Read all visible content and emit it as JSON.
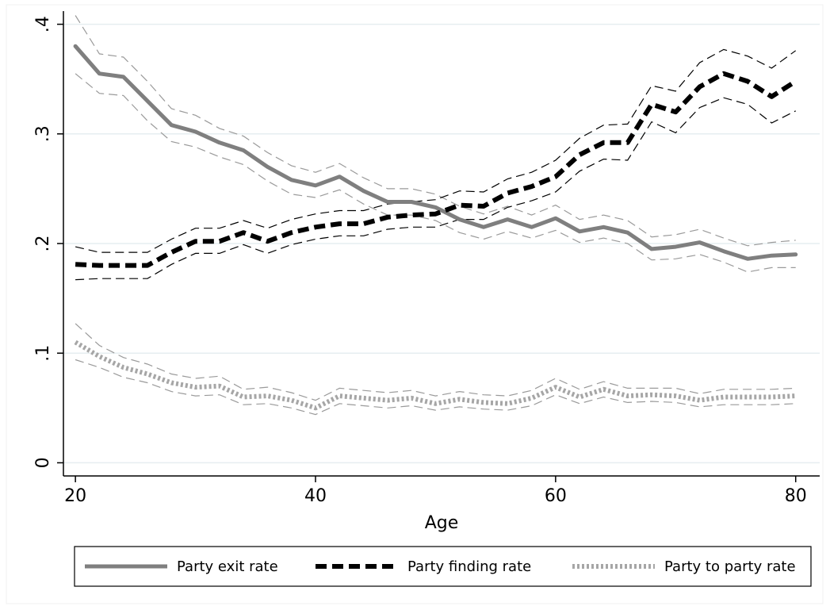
{
  "chart_data": {
    "type": "line",
    "xlabel": "Age",
    "ylabel": "",
    "xlim": [
      19,
      82
    ],
    "ylim": [
      -0.012,
      0.412
    ],
    "xticks": [
      20,
      40,
      60,
      80
    ],
    "xtick_labels": [
      "20",
      "40",
      "60",
      "80"
    ],
    "yticks": [
      0,
      0.1,
      0.2,
      0.3,
      0.4
    ],
    "ytick_labels": [
      "0",
      ".1",
      ".2",
      ".3",
      ".4"
    ],
    "grid": true,
    "legend_position": "bottom",
    "x": [
      20,
      22,
      24,
      26,
      28,
      30,
      32,
      34,
      36,
      38,
      40,
      42,
      44,
      46,
      48,
      50,
      52,
      54,
      56,
      58,
      60,
      62,
      64,
      66,
      68,
      70,
      72,
      74,
      76,
      78,
      80
    ],
    "series": [
      {
        "name": "Party exit rate",
        "style": "solid",
        "color": "#7f7f7f",
        "values": [
          0.38,
          0.355,
          0.352,
          0.33,
          0.308,
          0.302,
          0.292,
          0.285,
          0.27,
          0.258,
          0.253,
          0.261,
          0.248,
          0.238,
          0.238,
          0.233,
          0.222,
          0.215,
          0.222,
          0.215,
          0.223,
          0.211,
          0.215,
          0.21,
          0.195,
          0.197,
          0.201,
          0.193,
          0.186,
          0.189,
          0.19
        ],
        "ci_lower": [
          0.355,
          0.337,
          0.335,
          0.312,
          0.293,
          0.288,
          0.279,
          0.272,
          0.257,
          0.245,
          0.242,
          0.249,
          0.236,
          0.226,
          0.226,
          0.221,
          0.21,
          0.204,
          0.211,
          0.205,
          0.212,
          0.201,
          0.205,
          0.2,
          0.185,
          0.186,
          0.19,
          0.183,
          0.174,
          0.178,
          0.178
        ],
        "ci_upper": [
          0.408,
          0.373,
          0.37,
          0.348,
          0.323,
          0.317,
          0.305,
          0.298,
          0.283,
          0.271,
          0.265,
          0.273,
          0.26,
          0.25,
          0.25,
          0.245,
          0.234,
          0.227,
          0.234,
          0.226,
          0.235,
          0.222,
          0.226,
          0.221,
          0.206,
          0.208,
          0.213,
          0.205,
          0.198,
          0.201,
          0.203
        ]
      },
      {
        "name": "Party finding rate",
        "style": "dash",
        "color": "#000000",
        "values": [
          0.181,
          0.18,
          0.18,
          0.18,
          0.192,
          0.202,
          0.202,
          0.21,
          0.202,
          0.21,
          0.215,
          0.218,
          0.218,
          0.224,
          0.226,
          0.227,
          0.235,
          0.234,
          0.246,
          0.252,
          0.261,
          0.281,
          0.292,
          0.292,
          0.327,
          0.32,
          0.343,
          0.355,
          0.348,
          0.334,
          0.348
        ],
        "ci_lower": [
          0.167,
          0.168,
          0.168,
          0.168,
          0.181,
          0.191,
          0.191,
          0.199,
          0.191,
          0.199,
          0.204,
          0.207,
          0.207,
          0.213,
          0.215,
          0.215,
          0.222,
          0.222,
          0.233,
          0.239,
          0.247,
          0.266,
          0.277,
          0.276,
          0.311,
          0.301,
          0.324,
          0.333,
          0.327,
          0.31,
          0.321
        ],
        "ci_upper": [
          0.197,
          0.192,
          0.192,
          0.192,
          0.204,
          0.214,
          0.214,
          0.221,
          0.214,
          0.222,
          0.227,
          0.23,
          0.23,
          0.236,
          0.238,
          0.24,
          0.248,
          0.247,
          0.259,
          0.265,
          0.276,
          0.296,
          0.308,
          0.309,
          0.344,
          0.339,
          0.365,
          0.377,
          0.371,
          0.36,
          0.376
        ]
      },
      {
        "name": "Party to party rate",
        "style": "dot",
        "color": "#a6a6a6",
        "values": [
          0.11,
          0.097,
          0.087,
          0.081,
          0.073,
          0.069,
          0.07,
          0.06,
          0.061,
          0.057,
          0.05,
          0.061,
          0.059,
          0.057,
          0.059,
          0.054,
          0.058,
          0.055,
          0.054,
          0.059,
          0.069,
          0.06,
          0.067,
          0.061,
          0.062,
          0.061,
          0.057,
          0.06,
          0.06,
          0.06,
          0.061
        ],
        "ci_lower": [
          0.094,
          0.087,
          0.078,
          0.073,
          0.065,
          0.061,
          0.062,
          0.053,
          0.054,
          0.05,
          0.044,
          0.054,
          0.052,
          0.05,
          0.052,
          0.048,
          0.051,
          0.049,
          0.048,
          0.052,
          0.062,
          0.054,
          0.06,
          0.055,
          0.056,
          0.055,
          0.051,
          0.053,
          0.053,
          0.053,
          0.054
        ],
        "ci_upper": [
          0.127,
          0.107,
          0.096,
          0.09,
          0.081,
          0.077,
          0.079,
          0.067,
          0.069,
          0.064,
          0.057,
          0.068,
          0.066,
          0.064,
          0.066,
          0.061,
          0.065,
          0.062,
          0.061,
          0.066,
          0.077,
          0.067,
          0.074,
          0.068,
          0.068,
          0.068,
          0.063,
          0.067,
          0.067,
          0.067,
          0.068
        ]
      }
    ]
  }
}
